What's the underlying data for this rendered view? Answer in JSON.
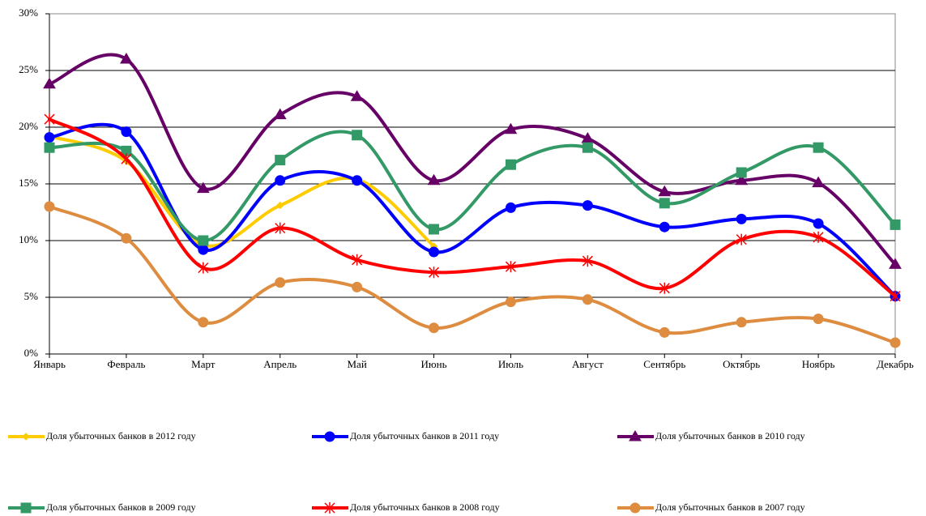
{
  "chart_data": {
    "type": "line",
    "categories": [
      "Январь",
      "Февраль",
      "Март",
      "Апрель",
      "Май",
      "Июнь",
      "Июль",
      "Август",
      "Сентябрь",
      "Октябрь",
      "Ноябрь",
      "Декабрь"
    ],
    "ylim": [
      0,
      30
    ],
    "yticks": [
      {
        "value": 0,
        "label": "0%"
      },
      {
        "value": 5,
        "label": "5%"
      },
      {
        "value": 10,
        "label": "10%"
      },
      {
        "value": 15,
        "label": "15%"
      },
      {
        "value": 20,
        "label": "20%"
      },
      {
        "value": 25,
        "label": "25%"
      },
      {
        "value": 30,
        "label": "30%"
      }
    ],
    "grid": true,
    "smooth": true,
    "series": [
      {
        "name": "Доля убыточных банков в 2012 году",
        "color": "#ffcc00",
        "marker": "diamond",
        "values": [
          19.2,
          17.0,
          9.6,
          13.1,
          15.4,
          9.5,
          null,
          null,
          null,
          null,
          null,
          null
        ]
      },
      {
        "name": "Доля убыточных банков в 2011 году",
        "color": "#0000ff",
        "marker": "circle",
        "values": [
          19.1,
          19.6,
          9.2,
          15.3,
          15.3,
          9.0,
          12.9,
          13.1,
          11.2,
          11.9,
          11.5,
          5.1
        ]
      },
      {
        "name": "Доля убыточных банков в 2010 году",
        "color": "#660066",
        "marker": "triangle",
        "values": [
          23.8,
          26.0,
          14.6,
          21.1,
          22.7,
          15.3,
          19.8,
          19.0,
          14.3,
          15.3,
          15.1,
          7.9
        ]
      },
      {
        "name": "Доля убыточных банков в 2009 году",
        "color": "#339966",
        "marker": "square",
        "values": [
          18.2,
          17.9,
          10.0,
          17.1,
          19.3,
          11.0,
          16.7,
          18.2,
          13.3,
          16.0,
          18.2,
          11.4
        ]
      },
      {
        "name": "Доля убыточных банков в 2008 году",
        "color": "#ff0000",
        "marker": "star",
        "values": [
          20.7,
          17.2,
          7.6,
          11.1,
          8.3,
          7.2,
          7.7,
          8.2,
          5.8,
          10.1,
          10.3,
          5.1
        ]
      },
      {
        "name": "Доля убыточных банков в 2007 году",
        "color": "#dd8c40",
        "marker": "circle",
        "values": [
          13.0,
          10.2,
          2.8,
          6.3,
          5.9,
          2.3,
          4.6,
          4.8,
          1.9,
          2.8,
          3.1,
          1.0
        ]
      }
    ]
  }
}
